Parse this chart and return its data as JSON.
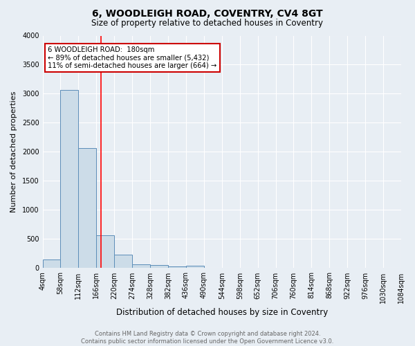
{
  "title": "6, WOODLEIGH ROAD, COVENTRY, CV4 8GT",
  "subtitle": "Size of property relative to detached houses in Coventry",
  "xlabel": "Distribution of detached houses by size in Coventry",
  "ylabel": "Number of detached properties",
  "bin_edges": [
    4,
    58,
    112,
    166,
    220,
    274,
    328,
    382,
    436,
    490,
    544,
    598,
    652,
    706,
    760,
    814,
    868,
    922,
    976,
    1030,
    1084
  ],
  "bar_heights": [
    150,
    3070,
    2060,
    570,
    230,
    70,
    50,
    35,
    40,
    0,
    0,
    0,
    0,
    0,
    0,
    0,
    0,
    0,
    0,
    0
  ],
  "bar_color": "#ccdce8",
  "bar_edge_color": "#5b8db8",
  "bg_color": "#e8eef4",
  "grid_color": "#ffffff",
  "red_line_x": 180,
  "annotation_box_text": "6 WOODLEIGH ROAD:  180sqm\n← 89% of detached houses are smaller (5,432)\n11% of semi-detached houses are larger (664) →",
  "annotation_box_color": "#ffffff",
  "annotation_box_edge_color": "#cc0000",
  "footer_line1": "Contains HM Land Registry data © Crown copyright and database right 2024.",
  "footer_line2": "Contains public sector information licensed under the Open Government Licence v3.0.",
  "ylim": [
    0,
    4000
  ],
  "yticks": [
    0,
    500,
    1000,
    1500,
    2000,
    2500,
    3000,
    3500,
    4000
  ],
  "title_fontsize": 10,
  "subtitle_fontsize": 8.5,
  "xlabel_fontsize": 8.5,
  "ylabel_fontsize": 8,
  "tick_fontsize": 7,
  "footer_fontsize": 6,
  "footer_color": "#666666"
}
